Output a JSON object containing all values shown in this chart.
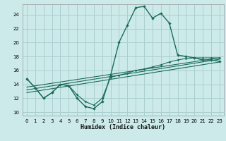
{
  "xlabel": "Humidex (Indice chaleur)",
  "bg_color": "#cceaea",
  "grid_color": "#aacfcf",
  "line_color": "#1a6b5a",
  "xlim": [
    -0.5,
    23.5
  ],
  "ylim": [
    9.5,
    25.5
  ],
  "yticks": [
    10,
    12,
    14,
    16,
    18,
    20,
    22,
    24
  ],
  "xticks": [
    0,
    1,
    2,
    3,
    4,
    5,
    6,
    7,
    8,
    9,
    10,
    11,
    12,
    13,
    14,
    15,
    16,
    17,
    18,
    19,
    20,
    21,
    22,
    23
  ],
  "series_main_x": [
    0,
    1,
    2,
    3,
    4,
    5,
    6,
    7,
    8,
    9,
    10,
    11,
    12,
    13,
    14,
    15,
    16,
    17,
    18,
    19,
    20,
    21,
    22,
    23
  ],
  "series_main_y": [
    14.8,
    13.5,
    12.0,
    12.8,
    14.0,
    13.8,
    12.0,
    10.8,
    10.5,
    11.5,
    15.3,
    20.0,
    22.5,
    25.0,
    25.2,
    23.5,
    24.2,
    22.8,
    18.2,
    18.0,
    17.8,
    17.5,
    17.5,
    17.3
  ],
  "series_flat_x": [
    0,
    1,
    2,
    3,
    4,
    5,
    6,
    7,
    8,
    9,
    10,
    11,
    12,
    13,
    14,
    15,
    16,
    17,
    18,
    19,
    20,
    21,
    22,
    23
  ],
  "series_flat_y": [
    14.8,
    13.5,
    12.0,
    12.8,
    14.0,
    13.8,
    12.5,
    11.5,
    11.0,
    12.0,
    15.0,
    15.3,
    15.6,
    16.0,
    16.2,
    16.5,
    16.8,
    17.2,
    17.5,
    17.7,
    17.8,
    17.8,
    17.8,
    17.8
  ],
  "trend1_x": [
    0,
    23
  ],
  "trend1_y": [
    13.2,
    17.6
  ],
  "trend2_x": [
    0,
    23
  ],
  "trend2_y": [
    12.8,
    17.2
  ],
  "trend3_x": [
    0,
    23
  ],
  "trend3_y": [
    13.6,
    17.8
  ]
}
